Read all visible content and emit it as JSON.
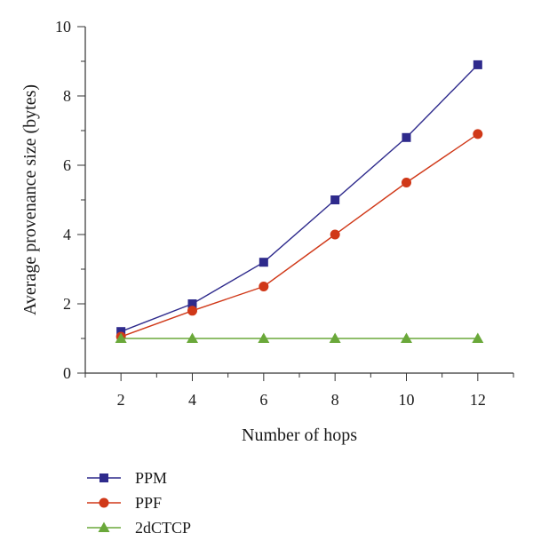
{
  "chart_data": {
    "type": "line",
    "title": "",
    "xlabel": "Number of hops",
    "ylabel": "Average provenance size (bytes)",
    "x": [
      2,
      4,
      6,
      8,
      10,
      12
    ],
    "xlim": [
      1,
      13
    ],
    "ylim": [
      0,
      10
    ],
    "xticks": [
      "2",
      "4",
      "6",
      "8",
      "10",
      "12"
    ],
    "yticks": [
      "0",
      "2",
      "4",
      "6",
      "8",
      "10"
    ],
    "grid": false,
    "legend_position": "bottom-left",
    "series": [
      {
        "name": "PPM",
        "values": [
          1.2,
          2.0,
          3.2,
          5.0,
          6.8,
          8.9
        ],
        "color": "#2e2a8c",
        "marker": "square"
      },
      {
        "name": "PPF",
        "values": [
          1.05,
          1.8,
          2.5,
          4.0,
          5.5,
          6.9
        ],
        "color": "#d03818",
        "marker": "circle"
      },
      {
        "name": "2dCTCP",
        "values": [
          1.0,
          1.0,
          1.0,
          1.0,
          1.0,
          1.0
        ],
        "color": "#6aa83a",
        "marker": "triangle"
      }
    ]
  }
}
